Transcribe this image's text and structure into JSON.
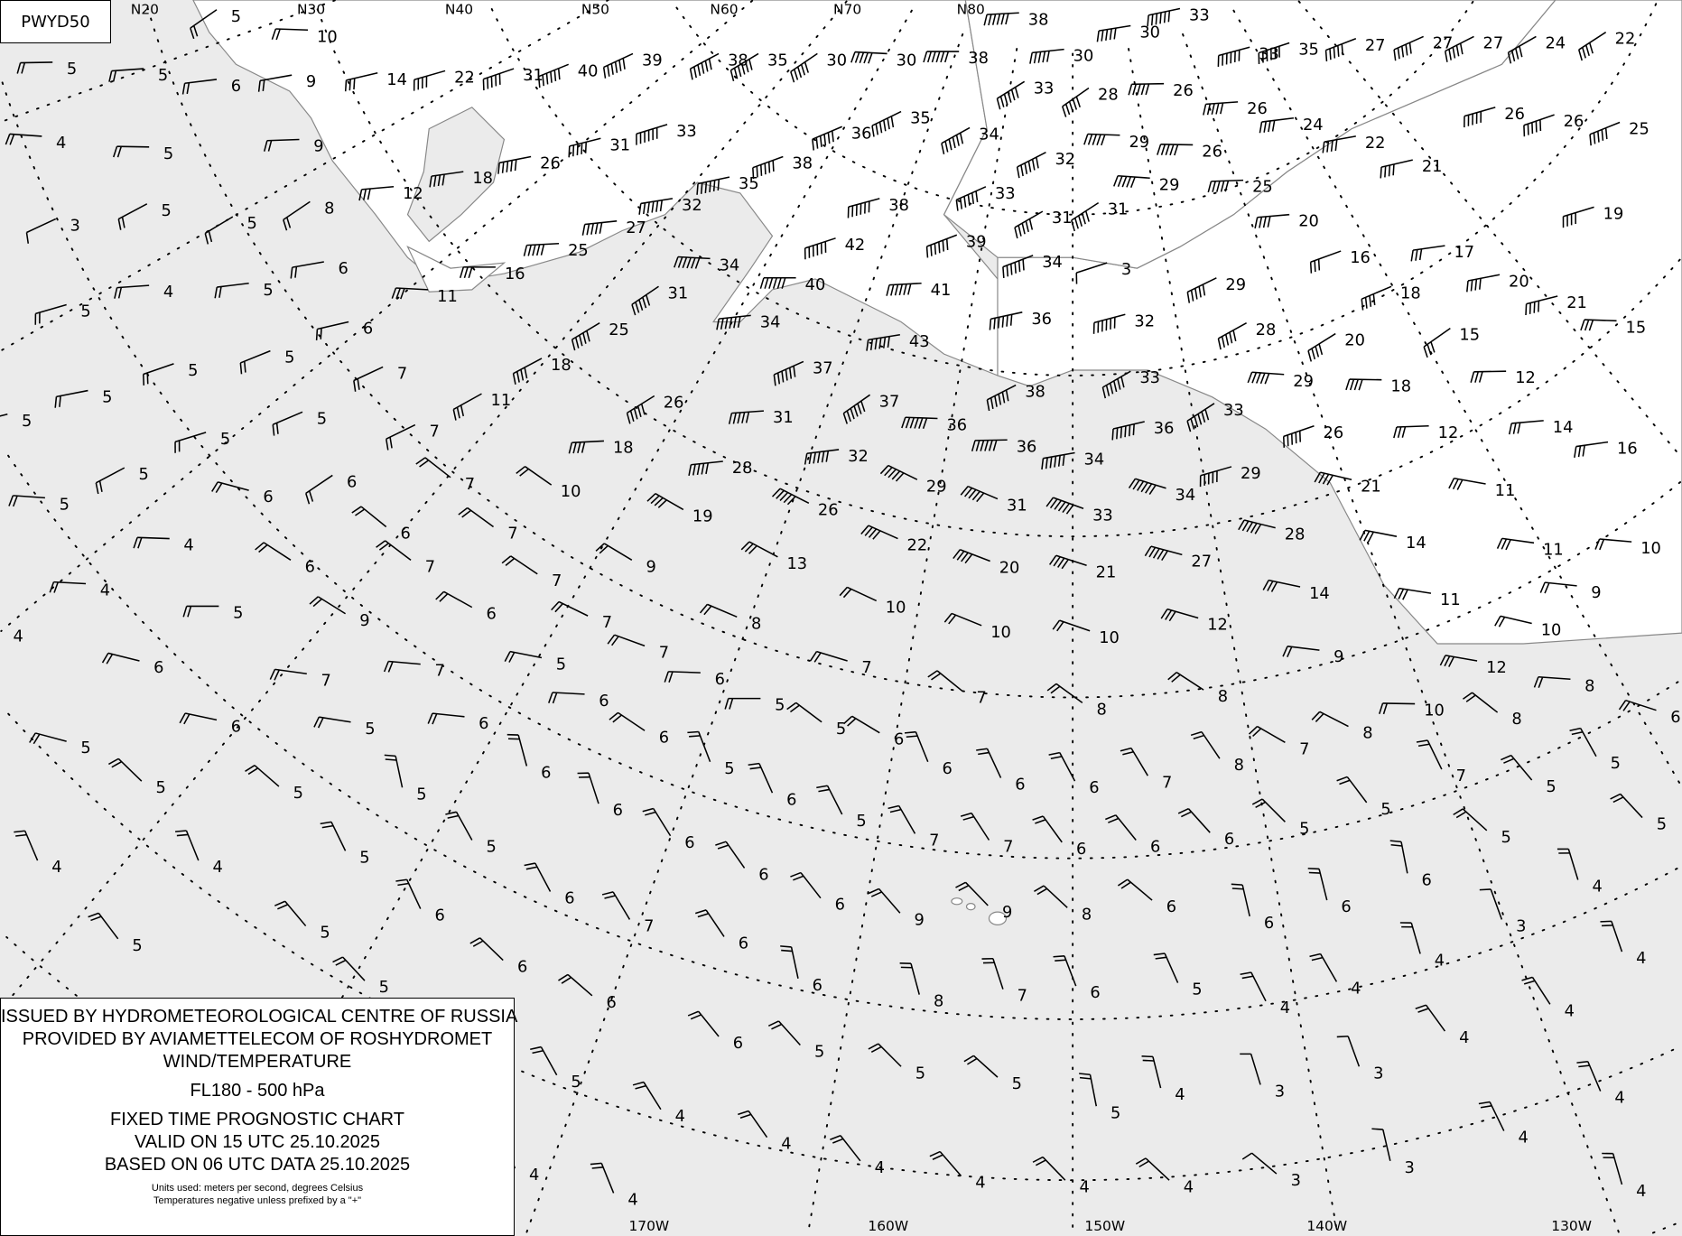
{
  "chart_id": "PWYD50",
  "legend": {
    "line1": "ISSUED BY HYDROMETEOROLOGICAL CENTRE OF RUSSIA",
    "line2": "PROVIDED BY AVIAMETTELECOM OF ROSHYDROMET",
    "line3": "WIND/TEMPERATURE",
    "level": "FL180 - 500 hPa",
    "chart_type": "FIXED TIME PROGNOSTIC CHART",
    "valid": "VALID ON 15 UTC 25.10.2025",
    "based": "BASED ON 06 UTC DATA 25.10.2025",
    "units": "Units used: meters per second, degrees Celsius",
    "note": "Temperatures negative unless prefixed by a \"+\""
  },
  "latitude_labels": [
    "N20",
    "N30",
    "N40",
    "N50",
    "N60",
    "N70",
    "N80"
  ],
  "longitude_labels": [
    "170W",
    "160W",
    "150W",
    "140W",
    "130W"
  ],
  "colors": {
    "sea": "#ebebeb",
    "land": "#ffffff",
    "lines": "#000000"
  },
  "temperatures": [
    "5",
    "10",
    "5",
    "5",
    "6",
    "9",
    "14",
    "22",
    "31",
    "40",
    "39",
    "38",
    "35",
    "30",
    "30",
    "38",
    "38",
    "30",
    "30",
    "33",
    "33",
    "35",
    "27",
    "27",
    "27",
    "24",
    "22",
    "4",
    "5",
    "9",
    "12",
    "18",
    "26",
    "31",
    "33",
    "38",
    "36",
    "35",
    "34",
    "33",
    "28",
    "29",
    "26",
    "26",
    "24",
    "22",
    "21",
    "26",
    "26",
    "25",
    "3",
    "5",
    "5",
    "8",
    "11",
    "16",
    "25",
    "27",
    "32",
    "35",
    "38",
    "42",
    "39",
    "33",
    "32",
    "31",
    "31",
    "29",
    "26",
    "25",
    "20",
    "17",
    "20",
    "21",
    "19",
    "16",
    "18",
    "29",
    "28",
    "20",
    "15",
    "15",
    "12",
    "4",
    "5",
    "6",
    "6",
    "5",
    "5",
    "5",
    "7",
    "18",
    "25",
    "31",
    "34",
    "40",
    "41",
    "34",
    "43",
    "36",
    "32",
    "3",
    "34",
    "37",
    "38",
    "33",
    "33",
    "29",
    "18",
    "12",
    "14",
    "16",
    "5",
    "5",
    "5",
    "6",
    "5",
    "7",
    "11",
    "26",
    "37",
    "36",
    "36",
    "31",
    "32",
    "34",
    "36",
    "29",
    "26",
    "21",
    "11",
    "5",
    "5",
    "6",
    "7",
    "10",
    "18",
    "28",
    "29",
    "31",
    "33",
    "34",
    "28",
    "14",
    "11",
    "10",
    "4",
    "6",
    "7",
    "6",
    "19",
    "26",
    "22",
    "20",
    "21",
    "27",
    "14",
    "11",
    "9",
    "4",
    "5",
    "7",
    "7",
    "9",
    "13",
    "10",
    "10",
    "10",
    "12",
    "10",
    "12",
    "9",
    "8",
    "10",
    "8",
    "4",
    "9",
    "6",
    "7",
    "8",
    "7",
    "7",
    "6",
    "5",
    "7",
    "7",
    "6",
    "7",
    "8",
    "8",
    "7",
    "8",
    "7",
    "5",
    "6",
    "5",
    "6",
    "5",
    "6",
    "6",
    "5",
    "5",
    "6",
    "6",
    "6",
    "6",
    "6",
    "7",
    "8",
    "5",
    "5",
    "5",
    "5",
    "5",
    "5",
    "6",
    "6",
    "5",
    "6",
    "5",
    "7",
    "7",
    "6",
    "6",
    "6",
    "5",
    "5",
    "6",
    "6",
    "4",
    "3",
    "4",
    "5",
    "5",
    "6",
    "6",
    "6",
    "9",
    "9",
    "8",
    "6",
    "6",
    "4",
    "4",
    "4",
    "6",
    "6",
    "7",
    "6",
    "5",
    "5",
    "5",
    "6",
    "6",
    "6",
    "8",
    "7",
    "6",
    "5",
    "4",
    "4",
    "4",
    "4",
    "6",
    "5",
    "5",
    "5",
    "5",
    "4",
    "3",
    "3",
    "4",
    "4",
    "5",
    "4",
    "4",
    "4",
    "4",
    "4",
    "4",
    "3",
    "3",
    "4",
    "4",
    "4"
  ]
}
